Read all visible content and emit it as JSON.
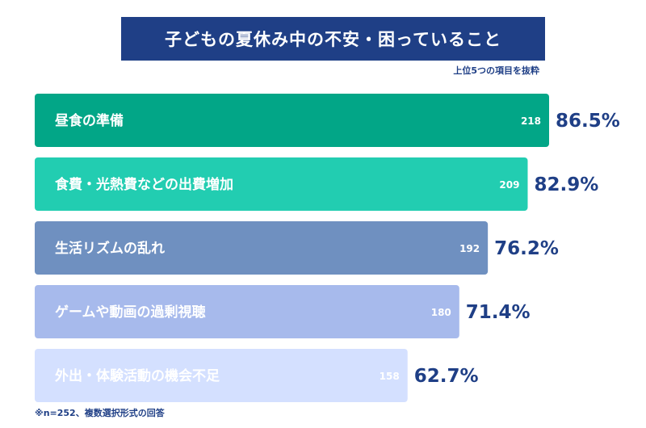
{
  "chart_data": {
    "type": "bar",
    "orientation": "horizontal",
    "title": "子どもの夏休み中の不安・困っていること",
    "subtitle": "上位5つの項目を抜粋",
    "note": "※n=252、複数選択形式の回答",
    "xlim": [
      0,
      100
    ],
    "categories": [
      "昼食の準備",
      "食費・光熱費などの出費増加",
      "生活リズムの乱れ",
      "ゲームや動画の過剰視聴",
      "外出・体験活動の機会不足"
    ],
    "counts": [
      218,
      209,
      192,
      180,
      158
    ],
    "percent_labels": [
      "86.5%",
      "82.9%",
      "76.2%",
      "71.4%",
      "62.7%"
    ],
    "values": [
      86.5,
      82.9,
      76.2,
      71.4,
      62.7
    ],
    "colors": [
      "#02a687",
      "#22cdb1",
      "#6f90c0",
      "#a7baec",
      "#d4e0ff"
    ]
  }
}
